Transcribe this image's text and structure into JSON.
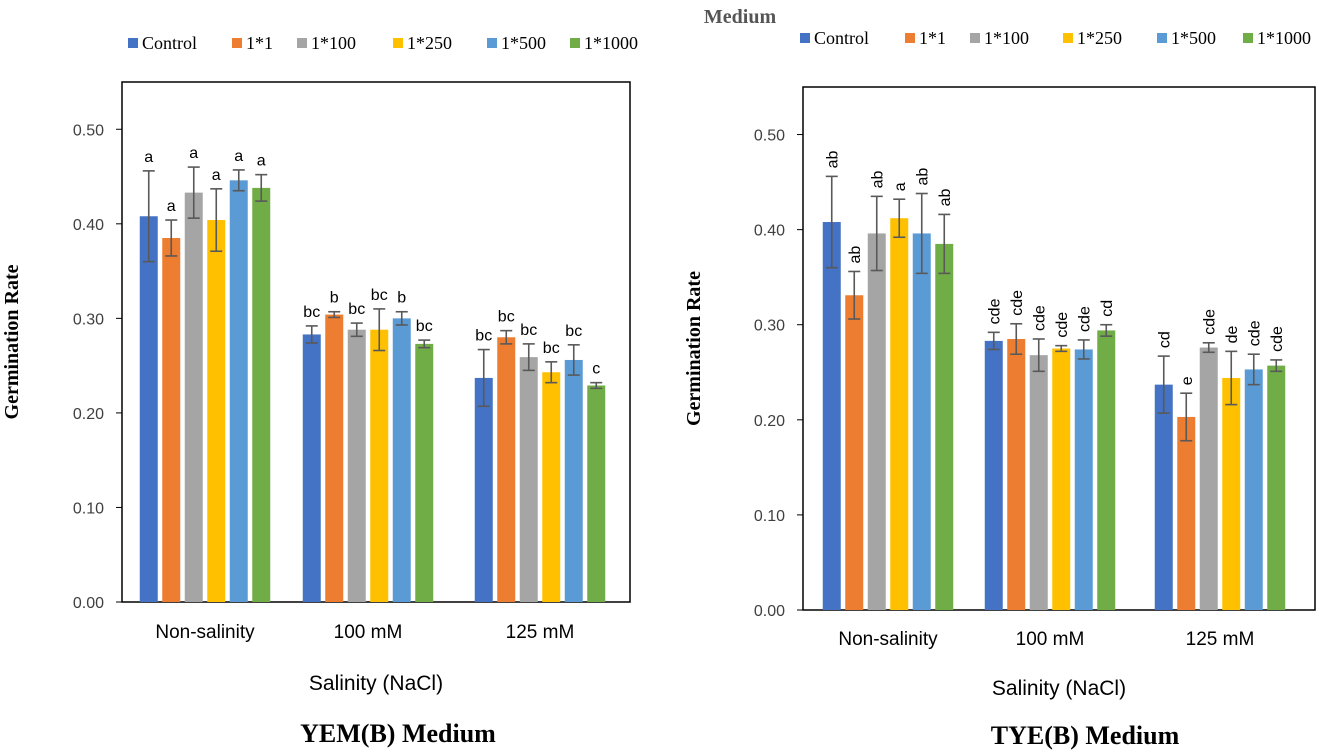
{
  "figure_title": "Medium",
  "chart_data": [
    {
      "type": "bar",
      "title": "YEM(B) Medium",
      "xlabel": "Salinity (NaCl)",
      "ylabel": "Germination Rate",
      "ylim": [
        0,
        0.55
      ],
      "yticks": [
        "0.00",
        "0.10",
        "0.20",
        "0.30",
        "0.40",
        "0.50"
      ],
      "grid": false,
      "legend_position": "top",
      "categories": [
        "Non-salinity",
        "100 mM",
        "125 mM"
      ],
      "series": [
        {
          "name": "Control",
          "color": "#4472C4",
          "values": [
            0.408,
            0.283,
            0.237
          ],
          "errors": [
            0.048,
            0.009,
            0.03
          ],
          "labels": [
            "a",
            "bc",
            "bc"
          ]
        },
        {
          "name": "1*1",
          "color": "#ED7D31",
          "values": [
            0.385,
            0.304,
            0.28
          ],
          "errors": [
            0.019,
            0.003,
            0.007
          ],
          "labels": [
            "a",
            "b",
            "bc"
          ]
        },
        {
          "name": "1*100",
          "color": "#A5A5A5",
          "values": [
            0.433,
            0.288,
            0.259
          ],
          "errors": [
            0.027,
            0.007,
            0.014
          ],
          "labels": [
            "a",
            "bc",
            "bc"
          ]
        },
        {
          "name": "1*250",
          "color": "#FFC000",
          "values": [
            0.404,
            0.288,
            0.243
          ],
          "errors": [
            0.033,
            0.022,
            0.011
          ],
          "labels": [
            "a",
            "bc",
            "bc"
          ]
        },
        {
          "name": "1*500",
          "color": "#5B9BD5",
          "values": [
            0.446,
            0.3,
            0.256
          ],
          "errors": [
            0.011,
            0.007,
            0.016
          ],
          "labels": [
            "a",
            "b",
            "bc"
          ]
        },
        {
          "name": "1*1000",
          "color": "#70AD47",
          "values": [
            0.438,
            0.273,
            0.229
          ],
          "errors": [
            0.014,
            0.004,
            0.003
          ],
          "labels": [
            "a",
            "bc",
            "c"
          ]
        }
      ]
    },
    {
      "type": "bar",
      "title": "TYE(B) Medium",
      "xlabel": "Salinity (NaCl)",
      "ylabel": "Germination Rate",
      "ylim": [
        0,
        0.55
      ],
      "yticks": [
        "0.00",
        "0.10",
        "0.20",
        "0.30",
        "0.40",
        "0.50"
      ],
      "grid": false,
      "legend_position": "top",
      "categories": [
        "Non-salinity",
        "100 mM",
        "125 mM"
      ],
      "series": [
        {
          "name": "Control",
          "color": "#4472C4",
          "values": [
            0.408,
            0.283,
            0.237
          ],
          "errors": [
            0.048,
            0.009,
            0.03
          ],
          "labels": [
            "ab",
            "cde",
            "cd"
          ]
        },
        {
          "name": "1*1",
          "color": "#ED7D31",
          "values": [
            0.331,
            0.285,
            0.203
          ],
          "errors": [
            0.025,
            0.016,
            0.025
          ],
          "labels": [
            "ab",
            "cde",
            "e"
          ]
        },
        {
          "name": "1*100",
          "color": "#A5A5A5",
          "values": [
            0.396,
            0.268,
            0.276
          ],
          "errors": [
            0.039,
            0.017,
            0.005
          ],
          "labels": [
            "ab",
            "cde",
            "cde"
          ]
        },
        {
          "name": "1*250",
          "color": "#FFC000",
          "values": [
            0.412,
            0.275,
            0.244
          ],
          "errors": [
            0.02,
            0.003,
            0.028
          ],
          "labels": [
            "a",
            "cde",
            "de"
          ]
        },
        {
          "name": "1*500",
          "color": "#5B9BD5",
          "values": [
            0.396,
            0.274,
            0.253
          ],
          "errors": [
            0.042,
            0.01,
            0.016
          ],
          "labels": [
            "ab",
            "cde",
            "cde"
          ]
        },
        {
          "name": "1*1000",
          "color": "#70AD47",
          "values": [
            0.385,
            0.294,
            0.257
          ],
          "errors": [
            0.031,
            0.006,
            0.006
          ],
          "labels": [
            "ab",
            "cd",
            "cde"
          ]
        }
      ]
    }
  ]
}
